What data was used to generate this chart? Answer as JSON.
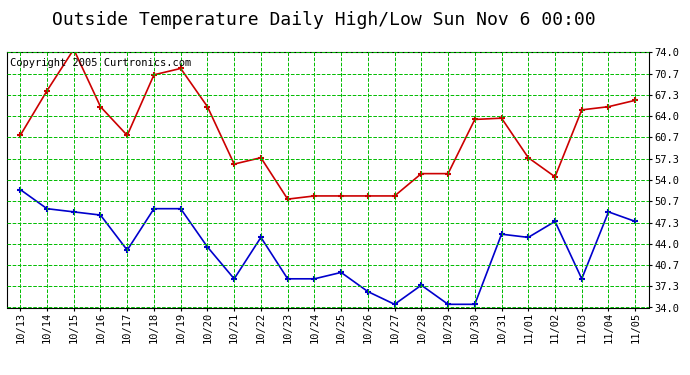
{
  "title": "Outside Temperature Daily High/Low Sun Nov 6 00:00",
  "copyright": "Copyright 2005 Curtronics.com",
  "x_labels": [
    "10/13",
    "10/14",
    "10/15",
    "10/16",
    "10/17",
    "10/18",
    "10/19",
    "10/20",
    "10/21",
    "10/22",
    "10/23",
    "10/24",
    "10/25",
    "10/26",
    "10/27",
    "10/28",
    "10/29",
    "10/30",
    "10/31",
    "11/01",
    "11/02",
    "11/03",
    "11/04",
    "11/05"
  ],
  "high_temps": [
    61.0,
    68.0,
    74.5,
    65.5,
    61.0,
    70.5,
    71.5,
    65.5,
    56.5,
    57.5,
    51.0,
    51.5,
    51.5,
    51.5,
    51.5,
    55.0,
    55.0,
    63.5,
    63.7,
    57.5,
    54.5,
    65.0,
    65.5,
    66.5
  ],
  "low_temps": [
    52.5,
    49.5,
    49.0,
    48.5,
    43.0,
    49.5,
    49.5,
    43.5,
    38.5,
    45.0,
    38.5,
    38.5,
    39.5,
    36.5,
    34.5,
    37.5,
    34.5,
    34.5,
    45.5,
    45.0,
    47.5,
    38.5,
    49.0,
    47.5
  ],
  "high_color": "#cc0000",
  "low_color": "#0000cc",
  "bg_color": "#ffffff",
  "grid_color": "#00bb00",
  "y_ticks": [
    34.0,
    37.3,
    40.7,
    44.0,
    47.3,
    50.7,
    54.0,
    57.3,
    60.7,
    64.0,
    67.3,
    70.7,
    74.0
  ],
  "y_min": 34.0,
  "y_max": 74.0,
  "title_fontsize": 13,
  "copyright_fontsize": 7.5,
  "tick_fontsize": 7.5
}
